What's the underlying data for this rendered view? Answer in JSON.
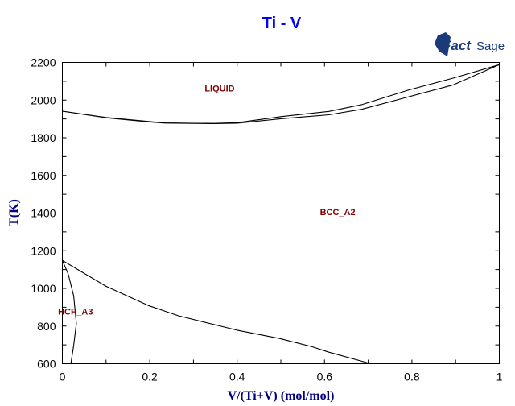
{
  "chart_data": {
    "type": "line",
    "title": "Ti - V",
    "xlabel": "V/(Ti+V) (mol/mol)",
    "ylabel": "T(K)",
    "xlim": [
      0,
      1
    ],
    "ylim": [
      600,
      2200
    ],
    "xticks": [
      "0",
      "0.2",
      "0.4",
      "0.6",
      "0.8",
      "1"
    ],
    "yticks": [
      "600",
      "800",
      "1000",
      "1200",
      "1400",
      "1600",
      "1800",
      "2000",
      "2200"
    ],
    "grid": false,
    "logo": "FactSage",
    "colors": {
      "title": "#0000ff",
      "axis_label": "#000080",
      "region_label": "#800000",
      "lines": "#000000"
    },
    "region_labels": [
      {
        "text": "LIQUID",
        "x": 0.36,
        "y": 2045
      },
      {
        "text": "BCC_A2",
        "x": 0.63,
        "y": 1390
      },
      {
        "text": "HCP_A3",
        "x": 0.03,
        "y": 860
      }
    ],
    "series": [
      {
        "values_x": [
          0,
          0.1,
          0.2,
          0.235,
          0.3,
          0.347,
          0.4,
          0.5,
          0.61,
          0.685,
          0.79,
          0.895,
          1
        ],
        "values_y": [
          1941,
          1908,
          1886,
          1879,
          1877,
          1876,
          1880,
          1912,
          1940,
          1976,
          2052,
          2117,
          2188
        ]
      },
      {
        "values_x": [
          0,
          0.1,
          0.2,
          0.235,
          0.3,
          0.347,
          0.4,
          0.5,
          0.61,
          0.685,
          0.79,
          0.895,
          1
        ],
        "values_y": [
          1941,
          1906,
          1884,
          1878,
          1876,
          1875,
          1877,
          1901,
          1922,
          1951,
          2016,
          2081,
          2188
        ]
      },
      {
        "values_x": [
          0,
          0.047,
          0.1,
          0.197,
          0.265,
          0.4,
          0.497,
          0.572,
          0.61,
          0.706
        ],
        "values_y": [
          1149,
          1084,
          1011,
          909,
          855,
          778,
          734,
          690,
          661,
          600
        ]
      },
      {
        "values_x": [
          0,
          0.0135,
          0.026,
          0.032,
          0.026,
          0.0195
        ],
        "values_y": [
          1149,
          1076,
          960,
          814,
          698,
          600
        ]
      }
    ]
  }
}
